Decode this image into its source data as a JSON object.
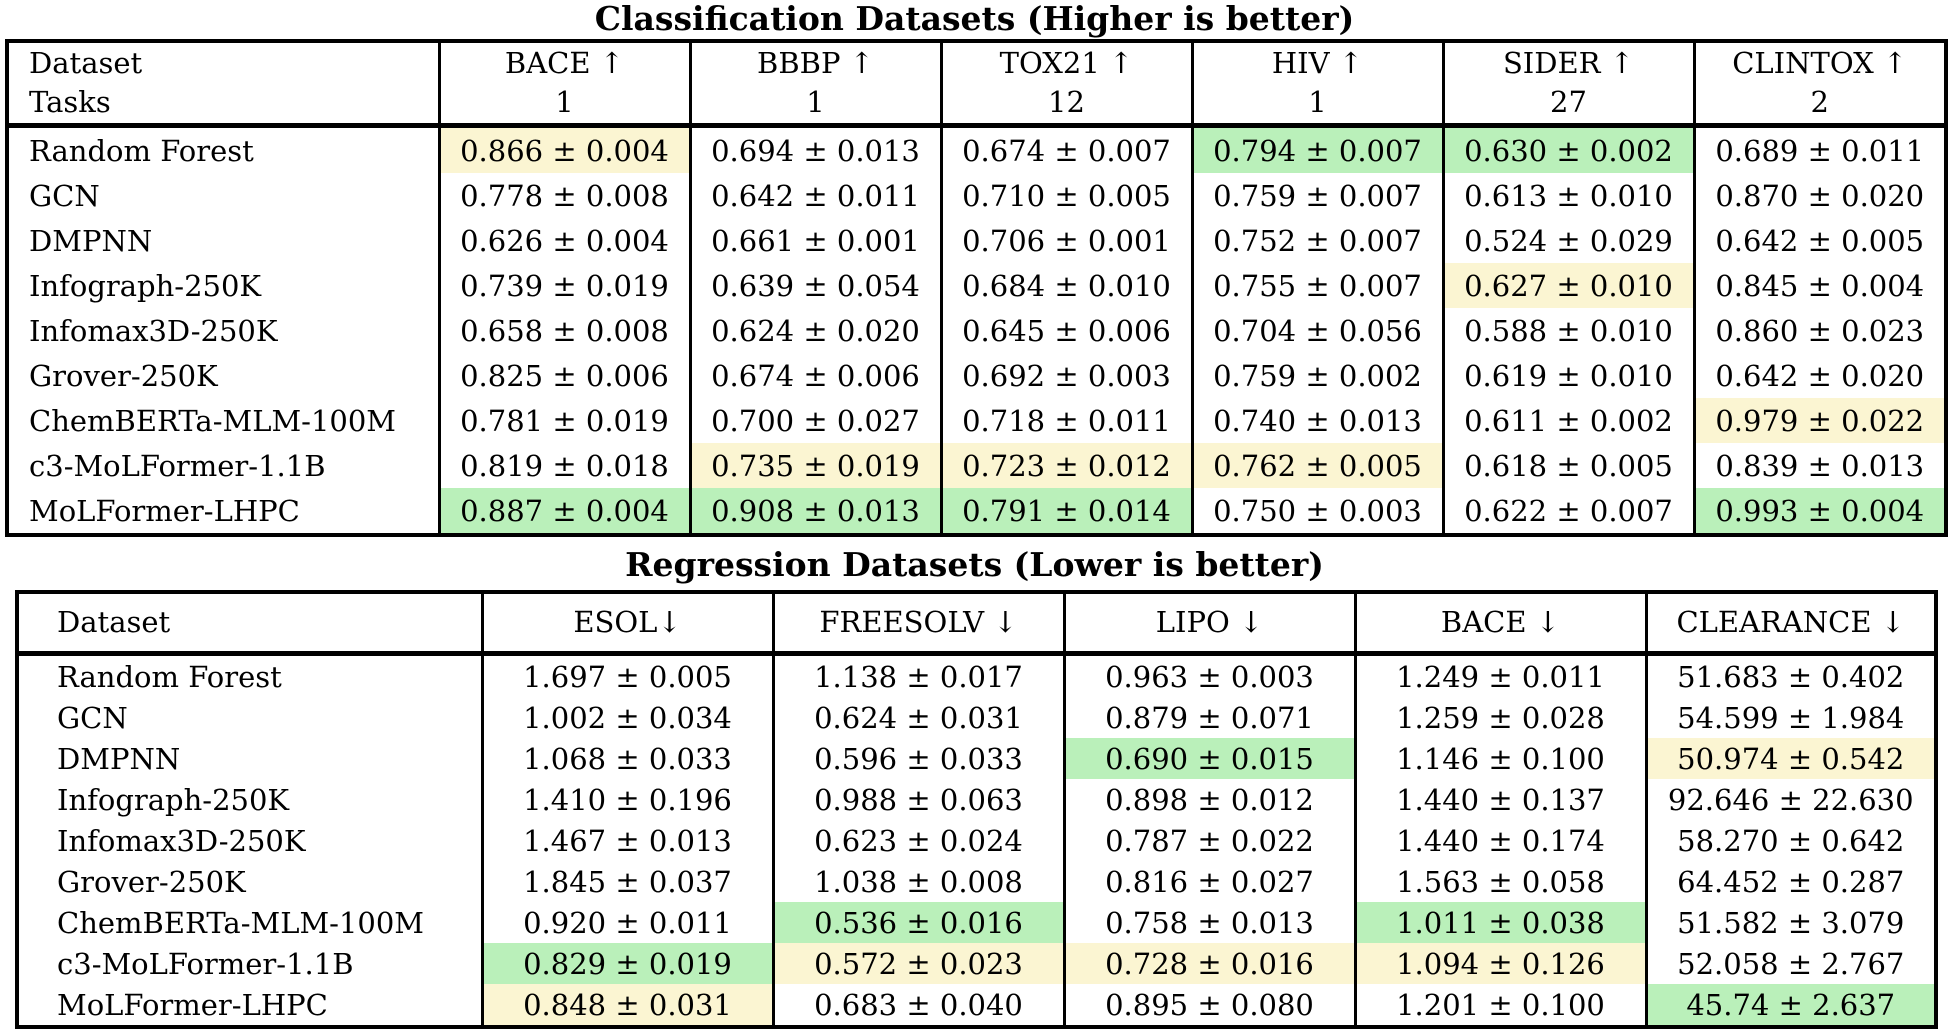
{
  "colors": {
    "green": "#baf0ba",
    "yellow": "#fbf5d2"
  },
  "classification": {
    "title": "Classification Datasets (Higher is better)",
    "row_header_line1": "Dataset",
    "row_header_line2": "Tasks",
    "columns": [
      {
        "label": "BACE ↑",
        "tasks": "1"
      },
      {
        "label": "BBBP ↑",
        "tasks": "1"
      },
      {
        "label": "TOX21 ↑",
        "tasks": "12"
      },
      {
        "label": "HIV ↑",
        "tasks": "1"
      },
      {
        "label": "SIDER ↑",
        "tasks": "27"
      },
      {
        "label": "CLINTOX ↑",
        "tasks": "2"
      }
    ],
    "rows": [
      {
        "model": "Random Forest",
        "cells": [
          {
            "value": "0.866 ± 0.004",
            "highlight": "yellow"
          },
          {
            "value": "0.694 ± 0.013",
            "highlight": "none"
          },
          {
            "value": "0.674 ± 0.007",
            "highlight": "none"
          },
          {
            "value": "0.794 ± 0.007",
            "highlight": "green"
          },
          {
            "value": "0.630 ± 0.002",
            "highlight": "green"
          },
          {
            "value": "0.689 ± 0.011",
            "highlight": "none"
          }
        ]
      },
      {
        "model": "GCN",
        "cells": [
          {
            "value": "0.778 ± 0.008",
            "highlight": "none"
          },
          {
            "value": "0.642 ± 0.011",
            "highlight": "none"
          },
          {
            "value": "0.710 ± 0.005",
            "highlight": "none"
          },
          {
            "value": "0.759 ± 0.007",
            "highlight": "none"
          },
          {
            "value": "0.613 ± 0.010",
            "highlight": "none"
          },
          {
            "value": "0.870 ± 0.020",
            "highlight": "none"
          }
        ]
      },
      {
        "model": "DMPNN",
        "cells": [
          {
            "value": "0.626 ± 0.004",
            "highlight": "none"
          },
          {
            "value": "0.661 ± 0.001",
            "highlight": "none"
          },
          {
            "value": "0.706 ± 0.001",
            "highlight": "none"
          },
          {
            "value": "0.752 ± 0.007",
            "highlight": "none"
          },
          {
            "value": "0.524 ± 0.029",
            "highlight": "none"
          },
          {
            "value": "0.642 ± 0.005",
            "highlight": "none"
          }
        ]
      },
      {
        "model": "Infograph-250K",
        "cells": [
          {
            "value": "0.739 ± 0.019",
            "highlight": "none"
          },
          {
            "value": "0.639 ± 0.054",
            "highlight": "none"
          },
          {
            "value": "0.684 ± 0.010",
            "highlight": "none"
          },
          {
            "value": "0.755 ± 0.007",
            "highlight": "none"
          },
          {
            "value": "0.627 ± 0.010",
            "highlight": "yellow"
          },
          {
            "value": "0.845 ± 0.004",
            "highlight": "none"
          }
        ]
      },
      {
        "model": "Infomax3D-250K",
        "cells": [
          {
            "value": "0.658 ± 0.008",
            "highlight": "none"
          },
          {
            "value": "0.624 ± 0.020",
            "highlight": "none"
          },
          {
            "value": "0.645 ± 0.006",
            "highlight": "none"
          },
          {
            "value": "0.704 ± 0.056",
            "highlight": "none"
          },
          {
            "value": "0.588 ± 0.010",
            "highlight": "none"
          },
          {
            "value": "0.860 ± 0.023",
            "highlight": "none"
          }
        ]
      },
      {
        "model": "Grover-250K",
        "cells": [
          {
            "value": "0.825 ± 0.006",
            "highlight": "none"
          },
          {
            "value": "0.674 ± 0.006",
            "highlight": "none"
          },
          {
            "value": "0.692 ± 0.003",
            "highlight": "none"
          },
          {
            "value": "0.759 ± 0.002",
            "highlight": "none"
          },
          {
            "value": "0.619 ± 0.010",
            "highlight": "none"
          },
          {
            "value": "0.642 ± 0.020",
            "highlight": "none"
          }
        ]
      },
      {
        "model": "ChemBERTa-MLM-100M",
        "cells": [
          {
            "value": "0.781 ± 0.019",
            "highlight": "none"
          },
          {
            "value": "0.700 ± 0.027",
            "highlight": "none"
          },
          {
            "value": "0.718 ± 0.011",
            "highlight": "none"
          },
          {
            "value": "0.740 ± 0.013",
            "highlight": "none"
          },
          {
            "value": "0.611 ± 0.002",
            "highlight": "none"
          },
          {
            "value": "0.979 ± 0.022",
            "highlight": "yellow"
          }
        ]
      },
      {
        "model": "c3-MoLFormer-1.1B",
        "cells": [
          {
            "value": "0.819 ± 0.018",
            "highlight": "none"
          },
          {
            "value": "0.735 ± 0.019",
            "highlight": "yellow"
          },
          {
            "value": "0.723 ± 0.012",
            "highlight": "yellow"
          },
          {
            "value": "0.762 ± 0.005",
            "highlight": "yellow"
          },
          {
            "value": "0.618 ± 0.005",
            "highlight": "none"
          },
          {
            "value": "0.839 ± 0.013",
            "highlight": "none"
          }
        ]
      },
      {
        "model": "MoLFormer-LHPC",
        "cells": [
          {
            "value": "0.887 ± 0.004",
            "highlight": "green"
          },
          {
            "value": "0.908 ± 0.013",
            "highlight": "green"
          },
          {
            "value": "0.791 ± 0.014",
            "highlight": "green"
          },
          {
            "value": "0.750 ± 0.003",
            "highlight": "none"
          },
          {
            "value": "0.622 ± 0.007",
            "highlight": "none"
          },
          {
            "value": "0.993 ± 0.004",
            "highlight": "green"
          }
        ]
      }
    ]
  },
  "regression": {
    "title": "Regression Datasets (Lower is better)",
    "row_header_line1": "Dataset",
    "columns": [
      {
        "label": "ESOL↓"
      },
      {
        "label": "FREESOLV ↓"
      },
      {
        "label": "LIPO ↓"
      },
      {
        "label": "BACE ↓"
      },
      {
        "label": "CLEARANCE ↓"
      }
    ],
    "rows": [
      {
        "model": "Random Forest",
        "cells": [
          {
            "value": "1.697 ± 0.005",
            "highlight": "none"
          },
          {
            "value": "1.138 ± 0.017",
            "highlight": "none"
          },
          {
            "value": "0.963 ± 0.003",
            "highlight": "none"
          },
          {
            "value": "1.249 ± 0.011",
            "highlight": "none"
          },
          {
            "value": "51.683 ± 0.402",
            "highlight": "none"
          }
        ]
      },
      {
        "model": "GCN",
        "cells": [
          {
            "value": "1.002 ± 0.034",
            "highlight": "none"
          },
          {
            "value": "0.624 ± 0.031",
            "highlight": "none"
          },
          {
            "value": "0.879 ± 0.071",
            "highlight": "none"
          },
          {
            "value": "1.259 ± 0.028",
            "highlight": "none"
          },
          {
            "value": "54.599 ± 1.984",
            "highlight": "none"
          }
        ]
      },
      {
        "model": "DMPNN",
        "cells": [
          {
            "value": "1.068 ± 0.033",
            "highlight": "none"
          },
          {
            "value": "0.596 ± 0.033",
            "highlight": "none"
          },
          {
            "value": "0.690 ± 0.015",
            "highlight": "green"
          },
          {
            "value": "1.146 ± 0.100",
            "highlight": "none"
          },
          {
            "value": "50.974 ± 0.542",
            "highlight": "yellow"
          }
        ]
      },
      {
        "model": "Infograph-250K",
        "cells": [
          {
            "value": "1.410 ± 0.196",
            "highlight": "none"
          },
          {
            "value": "0.988 ± 0.063",
            "highlight": "none"
          },
          {
            "value": "0.898 ± 0.012",
            "highlight": "none"
          },
          {
            "value": "1.440 ± 0.137",
            "highlight": "none"
          },
          {
            "value": "92.646 ± 22.630",
            "highlight": "none"
          }
        ]
      },
      {
        "model": "Infomax3D-250K",
        "cells": [
          {
            "value": "1.467 ± 0.013",
            "highlight": "none"
          },
          {
            "value": "0.623 ± 0.024",
            "highlight": "none"
          },
          {
            "value": "0.787 ± 0.022",
            "highlight": "none"
          },
          {
            "value": "1.440 ± 0.174",
            "highlight": "none"
          },
          {
            "value": "58.270 ± 0.642",
            "highlight": "none"
          }
        ]
      },
      {
        "model": "Grover-250K",
        "cells": [
          {
            "value": "1.845 ± 0.037",
            "highlight": "none"
          },
          {
            "value": "1.038 ± 0.008",
            "highlight": "none"
          },
          {
            "value": "0.816 ± 0.027",
            "highlight": "none"
          },
          {
            "value": "1.563 ± 0.058",
            "highlight": "none"
          },
          {
            "value": "64.452 ± 0.287",
            "highlight": "none"
          }
        ]
      },
      {
        "model": "ChemBERTa-MLM-100M",
        "cells": [
          {
            "value": "0.920 ± 0.011",
            "highlight": "none"
          },
          {
            "value": "0.536 ± 0.016",
            "highlight": "green"
          },
          {
            "value": "0.758 ± 0.013",
            "highlight": "none"
          },
          {
            "value": "1.011 ± 0.038",
            "highlight": "green"
          },
          {
            "value": "51.582 ± 3.079",
            "highlight": "none"
          }
        ]
      },
      {
        "model": "c3-MoLFormer-1.1B",
        "cells": [
          {
            "value": "0.829 ± 0.019",
            "highlight": "green"
          },
          {
            "value": "0.572 ± 0.023",
            "highlight": "yellow"
          },
          {
            "value": "0.728 ± 0.016",
            "highlight": "yellow"
          },
          {
            "value": "1.094 ± 0.126",
            "highlight": "yellow"
          },
          {
            "value": "52.058 ± 2.767",
            "highlight": "none"
          }
        ]
      },
      {
        "model": "MoLFormer-LHPC",
        "cells": [
          {
            "value": "0.848 ± 0.031",
            "highlight": "yellow"
          },
          {
            "value": "0.683 ± 0.040",
            "highlight": "none"
          },
          {
            "value": "0.895 ± 0.080",
            "highlight": "none"
          },
          {
            "value": "1.201 ± 0.100",
            "highlight": "none"
          },
          {
            "value": "45.74 ± 2.637",
            "highlight": "green"
          }
        ]
      }
    ]
  }
}
